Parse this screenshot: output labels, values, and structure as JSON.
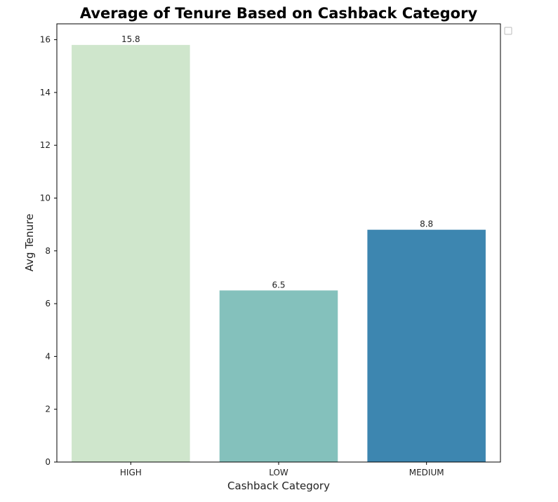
{
  "chart_data": {
    "type": "bar",
    "title": "Average of Tenure Based on Cashback Category",
    "xlabel": "Cashback Category",
    "ylabel": "Avg Tenure",
    "categories": [
      "HIGH",
      "LOW",
      "MEDIUM"
    ],
    "values": [
      15.8,
      6.5,
      8.8
    ],
    "data_labels": [
      "15.8",
      "6.5",
      "8.8"
    ],
    "colors": [
      "#cfe6cc",
      "#84c1bc",
      "#3d86b0"
    ],
    "ylim": [
      0,
      16.6
    ],
    "yticks": [
      0,
      2,
      4,
      6,
      8,
      10,
      12,
      14,
      16
    ],
    "grid": false,
    "legend": "top-right, empty"
  }
}
